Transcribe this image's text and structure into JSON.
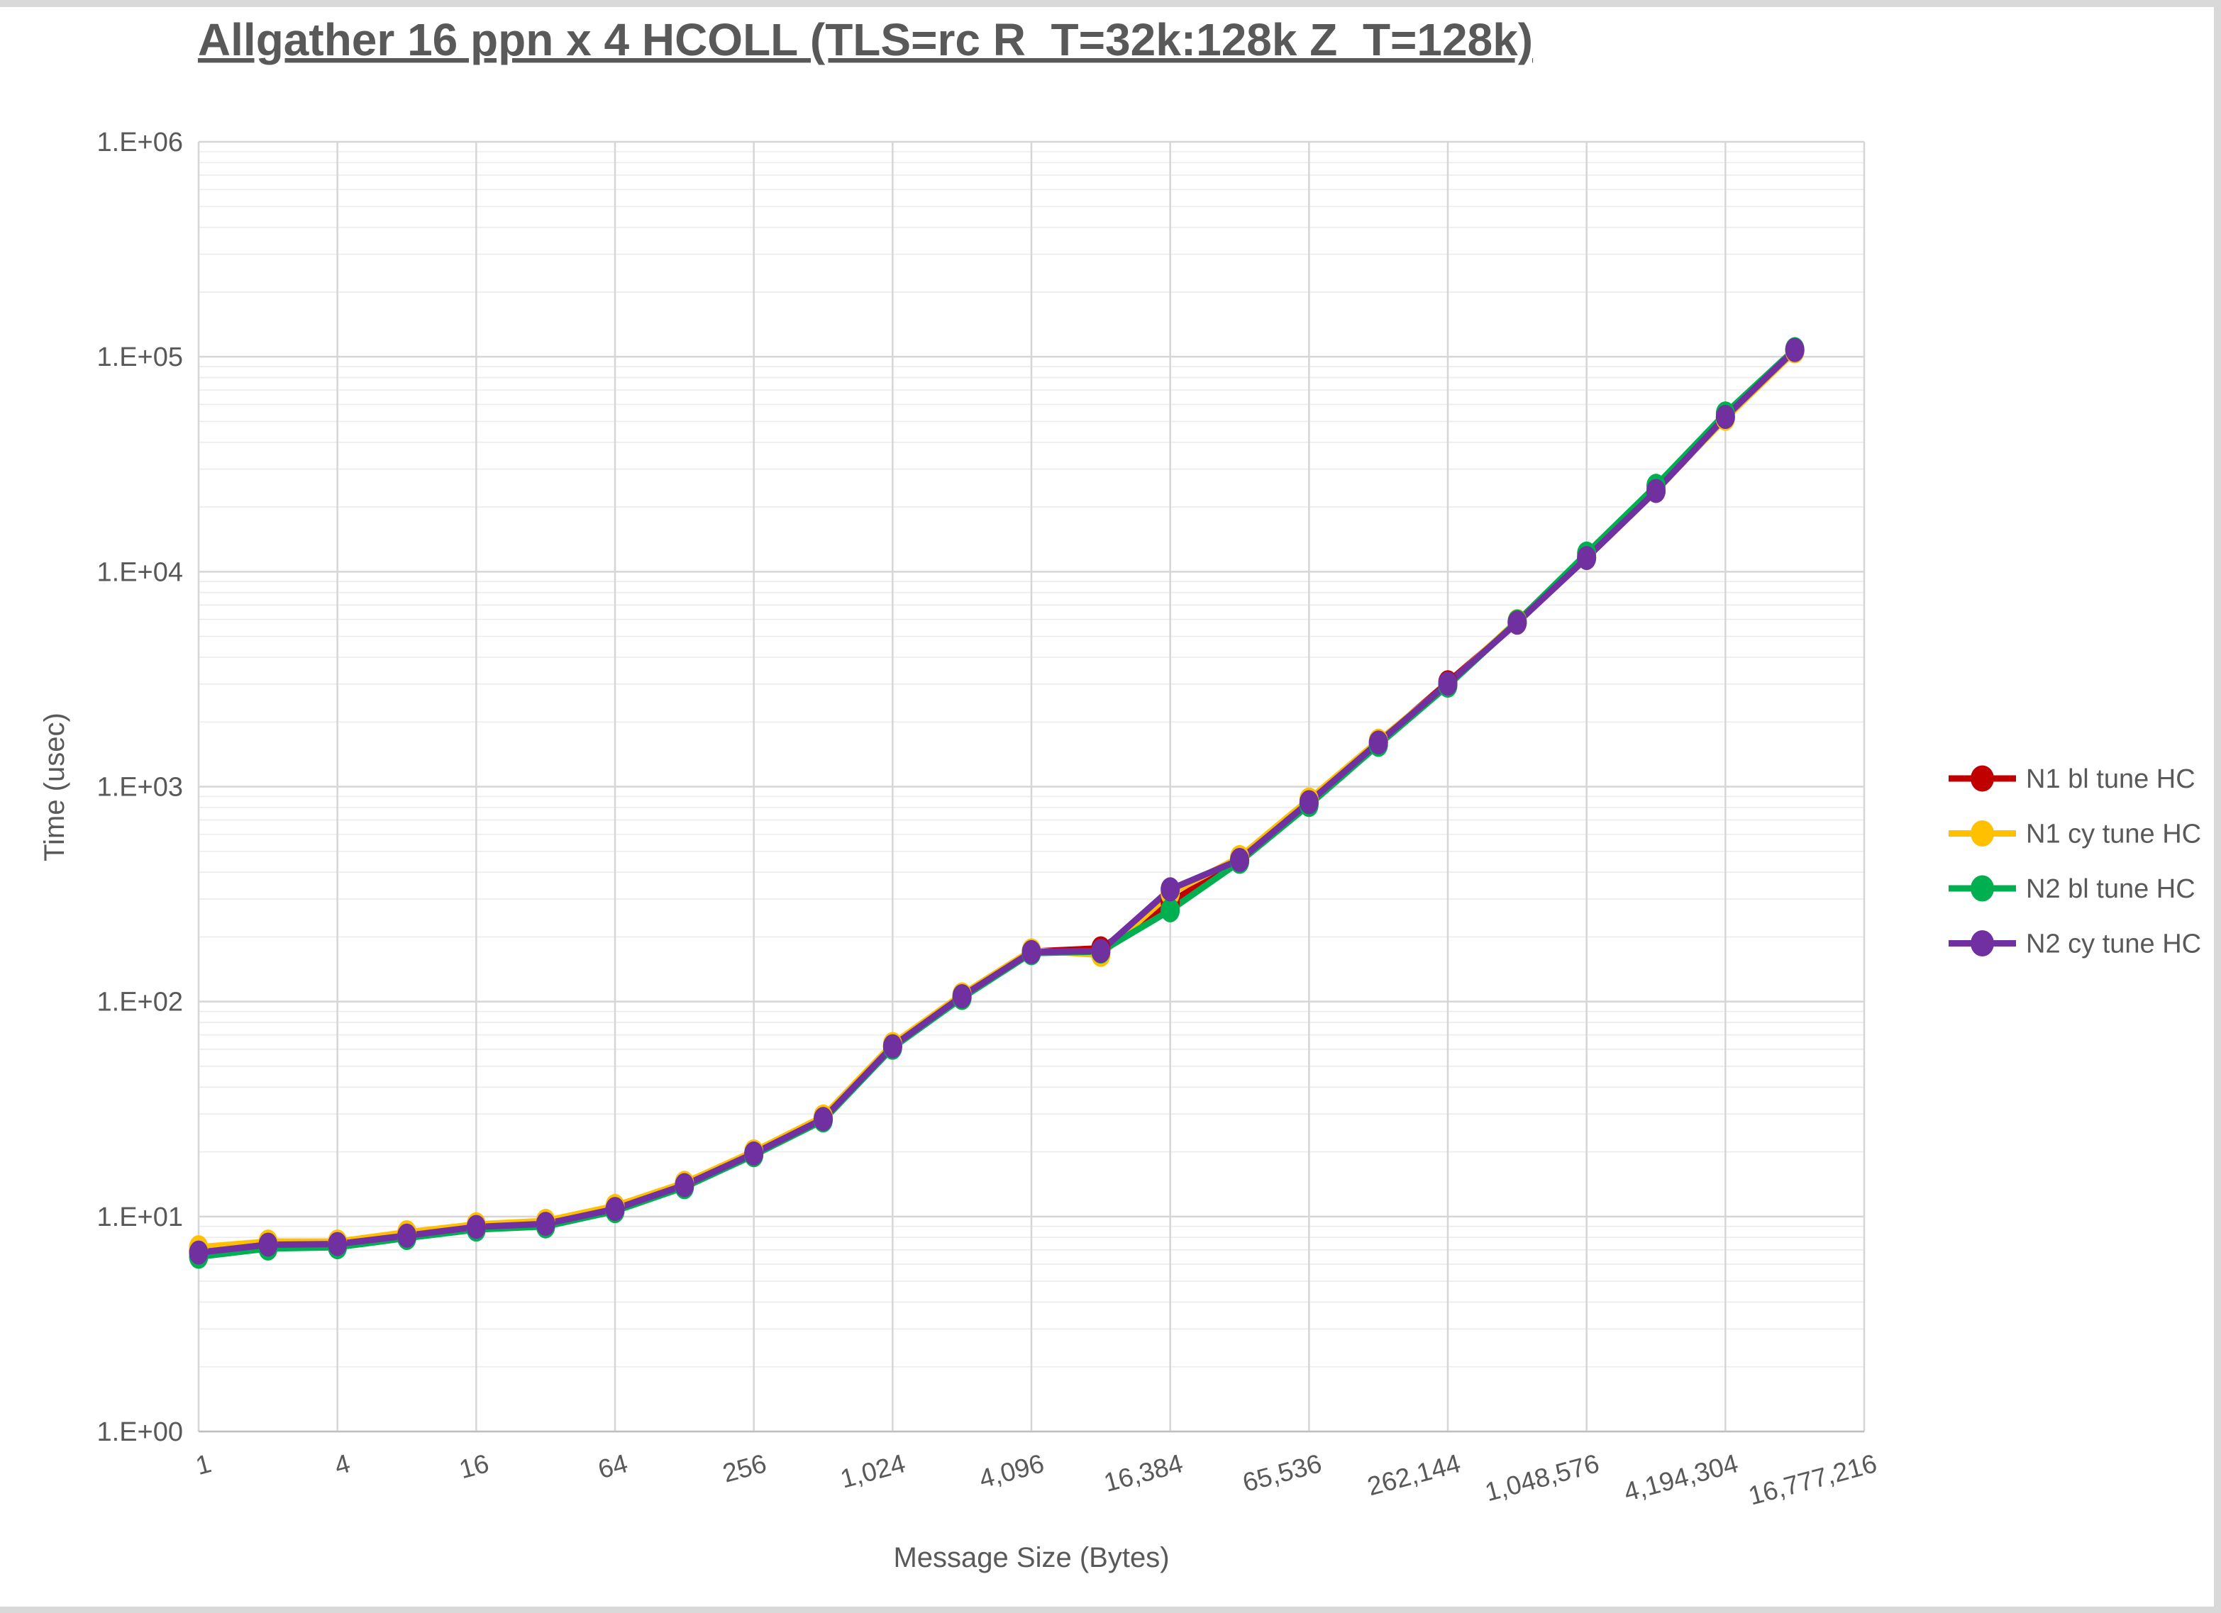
{
  "title": "Allgather 16 ppn x 4 HCOLL (TLS=rc R_T=32k:128k Z_T=128k)",
  "x_axis": {
    "title": "Message Size (Bytes)",
    "tick_labels": [
      "1",
      "4",
      "16",
      "64",
      "256",
      "1,024",
      "4,096",
      "16,384",
      "65,536",
      "262,144",
      "1,048,576",
      "4,194,304",
      "16,777,216"
    ]
  },
  "y_axis": {
    "title": "Time (usec)",
    "tick_labels": [
      "1.E+00",
      "1.E+01",
      "1.E+02",
      "1.E+03",
      "1.E+04",
      "1.E+05",
      "1.E+06"
    ]
  },
  "legend": {
    "items": [
      {
        "label": "N1 bl tune HC",
        "color": "#C00000"
      },
      {
        "label": "N1 cy tune HC",
        "color": "#FFC000"
      },
      {
        "label": "N2 bl tune HC",
        "color": "#00B050"
      },
      {
        "label": "N2 cy tune HC",
        "color": "#7030A0"
      }
    ]
  },
  "colors": {
    "text": "#595959",
    "major_grid": "#d6d6d6",
    "minor_grid": "#ececec",
    "axis_line": "#bfbfbf",
    "frame": "#d9d9d9",
    "background": "#ffffff"
  },
  "chart_data": {
    "type": "line",
    "x_scale": "log2",
    "y_scale": "log10",
    "title": "Allgather 16 ppn x 4 HCOLL (TLS=rc R_T=32k:128k Z_T=128k)",
    "xlabel": "Message Size (Bytes)",
    "ylabel": "Time (usec)",
    "xlim": [
      1,
      16777216
    ],
    "ylim": [
      1,
      1000000
    ],
    "grid": true,
    "legend_position": "right",
    "categories": [
      1,
      2,
      4,
      8,
      16,
      32,
      64,
      128,
      256,
      512,
      1024,
      2048,
      4096,
      8192,
      16384,
      32768,
      65536,
      131072,
      262144,
      524288,
      1048576,
      2097152,
      4194304,
      8388608
    ],
    "series": [
      {
        "name": "N1 bl tune HC",
        "color": "#C00000",
        "values": [
          6.9,
          7.4,
          7.45,
          8.2,
          8.95,
          9.25,
          10.9,
          14.0,
          19.7,
          28.5,
          62,
          106,
          171,
          177,
          290,
          452,
          840,
          1610,
          3060,
          5800,
          11650,
          23800,
          52000,
          107000
        ]
      },
      {
        "name": "N1 cy tune HC",
        "color": "#FFC000",
        "values": [
          7.2,
          7.65,
          7.65,
          8.45,
          9.2,
          9.55,
          11.2,
          14.35,
          20.1,
          29.2,
          63.5,
          108,
          173,
          165,
          318,
          470,
          872,
          1635,
          3000,
          5900,
          11750,
          24100,
          51500,
          106000
        ]
      },
      {
        "name": "N2 bl tune HC",
        "color": "#00B050",
        "values": [
          6.5,
          7.1,
          7.2,
          7.95,
          8.7,
          9.0,
          10.6,
          13.7,
          19.3,
          28.0,
          61,
          104,
          168,
          171,
          266,
          447,
          822,
          1565,
          2950,
          5860,
          12150,
          25100,
          54500,
          108500
        ]
      },
      {
        "name": "N2 cy tune HC",
        "color": "#7030A0",
        "values": [
          6.8,
          7.4,
          7.45,
          8.15,
          8.95,
          9.25,
          10.85,
          14.0,
          19.65,
          28.45,
          62,
          106,
          170,
          172,
          333,
          456,
          847,
          1605,
          3015,
          5790,
          11580,
          23750,
          52500,
          107500
        ]
      }
    ]
  }
}
